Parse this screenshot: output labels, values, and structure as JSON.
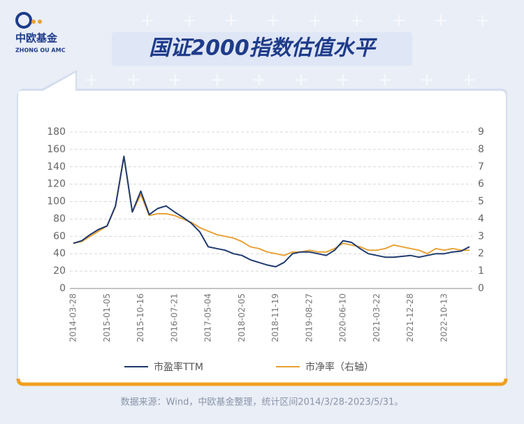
{
  "header": {
    "logo_name": "中欧基金",
    "logo_sub": "ZHONG OU AMC"
  },
  "chart_data": {
    "type": "line",
    "title": "国证2000指数估值水平",
    "categories": [
      "2014-03-28",
      null,
      null,
      null,
      "2015-01-05",
      null,
      null,
      null,
      "2015-10-16",
      null,
      null,
      null,
      "2016-07-21",
      null,
      null,
      null,
      "2017-05-04",
      null,
      null,
      null,
      "2018-02-05",
      null,
      null,
      null,
      "2018-11-19",
      null,
      null,
      null,
      "2019-08-27",
      null,
      null,
      null,
      "2020-06-10",
      null,
      null,
      null,
      "2021-03-22",
      null,
      null,
      null,
      "2021-12-28",
      null,
      null,
      null,
      "2022-10-13",
      null,
      null,
      null
    ],
    "series": [
      {
        "name": "市盈率TTM",
        "color": "#1f3a6e",
        "values": [
          52,
          55,
          62,
          68,
          72,
          95,
          152,
          88,
          112,
          85,
          92,
          95,
          88,
          82,
          75,
          65,
          48,
          46,
          44,
          40,
          38,
          33,
          30,
          27,
          25,
          30,
          40,
          42,
          42,
          40,
          38,
          44,
          55,
          53,
          46,
          40,
          38,
          36,
          36,
          37,
          38,
          36,
          38,
          40,
          40,
          42,
          43,
          48
        ]
      },
      {
        "name": "市净率（右轴）",
        "color": "#e8a236",
        "axis": "y2",
        "values": [
          2.6,
          2.7,
          3.0,
          3.3,
          3.6,
          4.7,
          7.6,
          4.4,
          5.4,
          4.2,
          4.3,
          4.3,
          4.2,
          4.0,
          3.8,
          3.5,
          3.3,
          3.1,
          3.0,
          2.9,
          2.7,
          2.4,
          2.3,
          2.1,
          2.0,
          1.9,
          2.1,
          2.1,
          2.2,
          2.1,
          2.1,
          2.3,
          2.6,
          2.5,
          2.4,
          2.2,
          2.2,
          2.3,
          2.5,
          2.4,
          2.3,
          2.2,
          2.0,
          2.3,
          2.2,
          2.3,
          2.2,
          2.2
        ]
      }
    ],
    "ylim": [
      0,
      180
    ],
    "yticks": [
      0,
      20,
      40,
      60,
      80,
      100,
      120,
      140,
      160,
      180
    ],
    "y2lim": [
      0,
      9
    ],
    "y2ticks": [
      0,
      1,
      2,
      3,
      4,
      5,
      6,
      7,
      8,
      9
    ],
    "grid": true
  },
  "footer": {
    "source": "数据来源：Wind，中欧基金整理，统计区间2014/3/28-2023/5/31。"
  }
}
